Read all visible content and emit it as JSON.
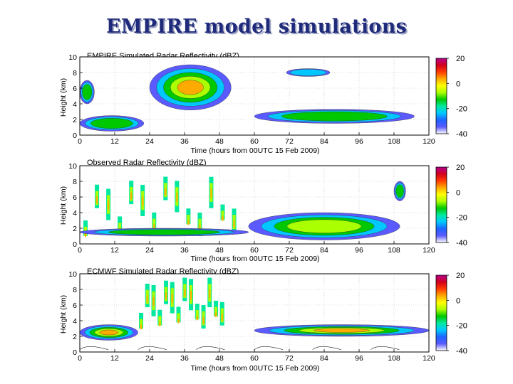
{
  "slide": {
    "title": "EMPIRE model simulations"
  },
  "colorbar_colors": [
    "#ffffff",
    "#5a5aff",
    "#1e64ff",
    "#00c8ff",
    "#00e8a0",
    "#00c800",
    "#aaff00",
    "#ffff00",
    "#ffaa00",
    "#ff3c00",
    "#d2001e",
    "#b4008c"
  ],
  "chart_data": [
    {
      "type": "heatmap",
      "title": "EMPIRE Simulated Radar Reflectivity (dBZ)",
      "xlabel": "Time (hours from 00UTC 15 Feb 2009)",
      "ylabel": "Height (km)",
      "xlim": [
        0,
        120
      ],
      "ylim": [
        0,
        10
      ],
      "xticks": [
        0,
        12,
        24,
        36,
        48,
        60,
        72,
        84,
        96,
        108,
        120
      ],
      "xtick_labels": [
        "0",
        "12",
        "24",
        "36",
        "48",
        "60",
        "72",
        "84",
        "96",
        "108",
        "120"
      ],
      "yticks": [
        0,
        2,
        4,
        6,
        8,
        10
      ],
      "ytick_labels": [
        "0",
        "2",
        "4",
        "6",
        "8",
        "10"
      ],
      "grid": true,
      "colorbar": {
        "range": [
          -40,
          20
        ],
        "ticks": [
          20,
          0,
          -20,
          -40
        ],
        "tick_labels": [
          "20",
          "0",
          "-20",
          "-40"
        ]
      },
      "features": [
        {
          "t0": 24,
          "t1": 52,
          "z0": 3.2,
          "z1": 9.0,
          "peak_dbz": 10,
          "note": "main cloud"
        },
        {
          "t0": 0,
          "t1": 22,
          "z0": 0.5,
          "z1": 2.5,
          "peak_dbz": -10
        },
        {
          "t0": 0,
          "t1": 5,
          "z0": 4.0,
          "z1": 7.0,
          "peak_dbz": -10
        },
        {
          "t0": 60,
          "t1": 115,
          "z0": 1.5,
          "z1": 3.3,
          "peak_dbz": -12
        },
        {
          "t0": 71,
          "t1": 86,
          "z0": 7.5,
          "z1": 8.5,
          "peak_dbz": -25
        }
      ]
    },
    {
      "type": "heatmap",
      "title": "Observed Radar Reflectivity (dBZ)",
      "xlabel": "Time (hours from 00UTC 15 Feb 2009)",
      "ylabel": "Height (km)",
      "xlim": [
        0,
        120
      ],
      "ylim": [
        0,
        10
      ],
      "xticks": [
        0,
        12,
        24,
        36,
        48,
        60,
        72,
        84,
        96,
        108,
        120
      ],
      "xtick_labels": [
        "0",
        "12",
        "24",
        "36",
        "48",
        "60",
        "72",
        "84",
        "96",
        "108",
        "120"
      ],
      "yticks": [
        0,
        2,
        4,
        6,
        8,
        10
      ],
      "ytick_labels": [
        "0",
        "2",
        "4",
        "6",
        "8",
        "10"
      ],
      "grid": true,
      "colorbar": {
        "range": [
          -40,
          20
        ],
        "ticks": [
          20,
          0,
          -20,
          -40
        ],
        "tick_labels": [
          "20",
          "0",
          "-20",
          "-40"
        ]
      },
      "features": [
        {
          "t0": 0,
          "t1": 55,
          "z0": 1.0,
          "z1": 9.5,
          "peak_dbz": 5,
          "note": "scattered convective streaks"
        },
        {
          "t0": 0,
          "t1": 58,
          "z0": 1.0,
          "z1": 2.0,
          "peak_dbz": -15
        },
        {
          "t0": 58,
          "t1": 110,
          "z0": 0.5,
          "z1": 4.0,
          "peak_dbz": 0
        },
        {
          "t0": 108,
          "t1": 112,
          "z0": 5.5,
          "z1": 8.0,
          "peak_dbz": -15
        }
      ]
    },
    {
      "type": "heatmap",
      "title": "ECMWF Simulated Radar Reflectivity (dBZ)",
      "xlabel": "Time (hours from 00UTC 15 Feb 2009)",
      "ylabel": "Height (km)",
      "xlim": [
        0,
        120
      ],
      "ylim": [
        0,
        10
      ],
      "xticks": [
        0,
        12,
        24,
        36,
        48,
        60,
        72,
        84,
        96,
        108,
        120
      ],
      "xtick_labels": [
        "0",
        "12",
        "24",
        "36",
        "48",
        "60",
        "72",
        "84",
        "96",
        "108",
        "120"
      ],
      "yticks": [
        0,
        2,
        4,
        6,
        8,
        10
      ],
      "ytick_labels": [
        "0",
        "2",
        "4",
        "6",
        "8",
        "10"
      ],
      "grid": true,
      "colorbar": {
        "range": [
          -40,
          20
        ],
        "ticks": [
          20,
          0,
          -20,
          -40
        ],
        "tick_labels": [
          "20",
          "0",
          "-20",
          "-40"
        ]
      },
      "features": [
        {
          "t0": 0,
          "t1": 20,
          "z0": 1.5,
          "z1": 3.5,
          "peak_dbz": 5
        },
        {
          "t0": 20,
          "t1": 50,
          "z0": 3.0,
          "z1": 9.5,
          "peak_dbz": 5,
          "note": "blocky columns"
        },
        {
          "t0": 60,
          "t1": 120,
          "z0": 2.0,
          "z1": 3.5,
          "peak_dbz": 5
        },
        {
          "t0": 0,
          "t1": 120,
          "z0": 0.0,
          "z1": 2.0,
          "peak_dbz": -35,
          "note": "contour lines only"
        }
      ]
    }
  ]
}
